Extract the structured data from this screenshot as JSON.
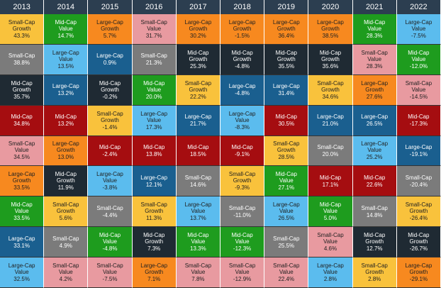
{
  "header": {
    "years": [
      "2013",
      "2014",
      "2015",
      "2016",
      "2017",
      "2018",
      "2019",
      "2020",
      "2021",
      "2022"
    ]
  },
  "columns": [
    {
      "cells": [
        {
          "asset": "Small-Cap Growth",
          "return": "43.3%",
          "color": "#f9c23c"
        },
        {
          "asset": "Small-Cap",
          "return": "38.8%",
          "color": "#7b7b7b"
        },
        {
          "asset": "Mid-Cap Growth",
          "return": "35.7%",
          "color": "#1f2a33"
        },
        {
          "asset": "Mid-Cap",
          "return": "34.8%",
          "color": "#a50d10"
        },
        {
          "asset": "Small-Cap Value",
          "return": "34.5%",
          "color": "#e89aa0"
        },
        {
          "asset": "Large-Cap Growth",
          "return": "33.5%",
          "color": "#f7891f"
        },
        {
          "asset": "Mid-Cap Value",
          "return": "33.5%",
          "color": "#1e9c1e"
        },
        {
          "asset": "Large-Cap",
          "return": "33.1%",
          "color": "#1a5f8f"
        },
        {
          "asset": "Large-Cap Value",
          "return": "32.5%",
          "color": "#5bbcee"
        }
      ]
    },
    {
      "cells": [
        {
          "asset": "Mid-Cap Value",
          "return": "14.7%",
          "color": "#1e9c1e"
        },
        {
          "asset": "Large-Cap Value",
          "return": "13.5%",
          "color": "#5bbcee"
        },
        {
          "asset": "Large-Cap",
          "return": "13.2%",
          "color": "#1a5f8f"
        },
        {
          "asset": "Mid-Cap",
          "return": "13.2%",
          "color": "#a50d10"
        },
        {
          "asset": "Large-Cap Growth",
          "return": "13.0%",
          "color": "#f7891f"
        },
        {
          "asset": "Mid-Cap Growth",
          "return": "11.9%",
          "color": "#1f2a33"
        },
        {
          "asset": "Small-Cap Growth",
          "return": "5.6%",
          "color": "#f9c23c"
        },
        {
          "asset": "Small-Cap",
          "return": "4.9%",
          "color": "#7b7b7b"
        },
        {
          "asset": "Small-Cap Value",
          "return": "4.2%",
          "color": "#e89aa0"
        }
      ]
    },
    {
      "cells": [
        {
          "asset": "Large-Cap Growth",
          "return": "5.7%",
          "color": "#f7891f"
        },
        {
          "asset": "Large-Cap",
          "return": "0.9%",
          "color": "#1a5f8f"
        },
        {
          "asset": "Mid-Cap Growth",
          "return": "-0.2%",
          "color": "#1f2a33"
        },
        {
          "asset": "Small-Cap Growth",
          "return": "-1.4%",
          "color": "#f9c23c"
        },
        {
          "asset": "Mid-Cap",
          "return": "-2.4%",
          "color": "#a50d10"
        },
        {
          "asset": "Large-Cap Value",
          "return": "-3.8%",
          "color": "#5bbcee"
        },
        {
          "asset": "Small-Cap",
          "return": "-4.4%",
          "color": "#7b7b7b"
        },
        {
          "asset": "Mid-Cap Value",
          "return": "-4.8%",
          "color": "#1e9c1e"
        },
        {
          "asset": "Small-Cap Value",
          "return": "-7.5%",
          "color": "#e89aa0"
        }
      ]
    },
    {
      "cells": [
        {
          "asset": "Small-Cap Value",
          "return": "31.7%",
          "color": "#e89aa0"
        },
        {
          "asset": "Small-Cap",
          "return": "21.3%",
          "color": "#7b7b7b"
        },
        {
          "asset": "Mid-Cap Value",
          "return": "20.0%",
          "color": "#1e9c1e"
        },
        {
          "asset": "Large-Cap Value",
          "return": "17.3%",
          "color": "#5bbcee"
        },
        {
          "asset": "Mid-Cap",
          "return": "13.8%",
          "color": "#a50d10"
        },
        {
          "asset": "Large-Cap",
          "return": "12.1%",
          "color": "#1a5f8f"
        },
        {
          "asset": "Small-Cap Growth",
          "return": "11.3%",
          "color": "#f9c23c"
        },
        {
          "asset": "Mid-Cap Growth",
          "return": "7.3%",
          "color": "#1f2a33"
        },
        {
          "asset": "Large-Cap Growth",
          "return": "7.1%",
          "color": "#f7891f"
        }
      ]
    },
    {
      "cells": [
        {
          "asset": "Large-Cap Growth",
          "return": "30.2%",
          "color": "#f7891f"
        },
        {
          "asset": "Mid-Cap Growth",
          "return": "25.3%",
          "color": "#1f2a33"
        },
        {
          "asset": "Small-Cap Growth",
          "return": "22.2%",
          "color": "#f9c23c"
        },
        {
          "asset": "Large-Cap",
          "return": "21.7%",
          "color": "#1a5f8f"
        },
        {
          "asset": "Mid-Cap",
          "return": "18.5%",
          "color": "#a50d10"
        },
        {
          "asset": "Small-Cap",
          "return": "14.6%",
          "color": "#7b7b7b"
        },
        {
          "asset": "Large-Cap Value",
          "return": "13.7%",
          "color": "#5bbcee"
        },
        {
          "asset": "Mid-Cap Value",
          "return": "13.3%",
          "color": "#1e9c1e"
        },
        {
          "asset": "Small-Cap Value",
          "return": "7.8%",
          "color": "#e89aa0"
        }
      ]
    },
    {
      "cells": [
        {
          "asset": "Large-Cap Growth",
          "return": "-1.5%",
          "color": "#f7891f"
        },
        {
          "asset": "Mid-Cap Growth",
          "return": "-4.8%",
          "color": "#1f2a33"
        },
        {
          "asset": "Large-Cap",
          "return": "-4.8%",
          "color": "#1a5f8f"
        },
        {
          "asset": "Large-Cap Value",
          "return": "-8.3%",
          "color": "#5bbcee"
        },
        {
          "asset": "Mid-Cap",
          "return": "-9.1%",
          "color": "#a50d10"
        },
        {
          "asset": "Small-Cap Growth",
          "return": "-9.3%",
          "color": "#f9c23c"
        },
        {
          "asset": "Small-Cap",
          "return": "-11.0%",
          "color": "#7b7b7b"
        },
        {
          "asset": "Mid-Cap Value",
          "return": "-12.3%",
          "color": "#1e9c1e"
        },
        {
          "asset": "Small-Cap Value",
          "return": "-12.9%",
          "color": "#e89aa0"
        }
      ]
    },
    {
      "cells": [
        {
          "asset": "Large-Cap Growth",
          "return": "36.4%",
          "color": "#f7891f"
        },
        {
          "asset": "Mid-Cap Growth",
          "return": "35.5%",
          "color": "#1f2a33"
        },
        {
          "asset": "Large-Cap",
          "return": "31.4%",
          "color": "#1a5f8f"
        },
        {
          "asset": "Mid-Cap",
          "return": "30.5%",
          "color": "#a50d10"
        },
        {
          "asset": "Small-Cap Growth",
          "return": "28.5%",
          "color": "#f9c23c"
        },
        {
          "asset": "Mid-Cap Value",
          "return": "27.1%",
          "color": "#1e9c1e"
        },
        {
          "asset": "Large-Cap Value",
          "return": "26.5%",
          "color": "#5bbcee"
        },
        {
          "asset": "Small-Cap",
          "return": "25.5%",
          "color": "#7b7b7b"
        },
        {
          "asset": "Small-Cap Value",
          "return": "22.4%",
          "color": "#e89aa0"
        }
      ]
    },
    {
      "cells": [
        {
          "asset": "Large-Cap Growth",
          "return": "38.5%",
          "color": "#f7891f"
        },
        {
          "asset": "Mid-Cap Growth",
          "return": "35.6%",
          "color": "#1f2a33"
        },
        {
          "asset": "Small-Cap Growth",
          "return": "34.6%",
          "color": "#f9c23c"
        },
        {
          "asset": "Large-Cap",
          "return": "21.0%",
          "color": "#1a5f8f"
        },
        {
          "asset": "Small-Cap",
          "return": "20.0%",
          "color": "#7b7b7b"
        },
        {
          "asset": "Mid-Cap",
          "return": "17.1%",
          "color": "#a50d10"
        },
        {
          "asset": "Mid-Cap Value",
          "return": "5.0%",
          "color": "#1e9c1e"
        },
        {
          "asset": "Small-Cap Value",
          "return": "4.6%",
          "color": "#e89aa0"
        },
        {
          "asset": "Large-Cap Value",
          "return": "2.8%",
          "color": "#5bbcee"
        }
      ]
    },
    {
      "cells": [
        {
          "asset": "Mid-Cap Value",
          "return": "28.3%",
          "color": "#1e9c1e"
        },
        {
          "asset": "Small-Cap Value",
          "return": "28.3%",
          "color": "#e89aa0"
        },
        {
          "asset": "Large-Cap Growth",
          "return": "27.6%",
          "color": "#f7891f"
        },
        {
          "asset": "Large-Cap",
          "return": "26.5%",
          "color": "#1a5f8f"
        },
        {
          "asset": "Large-Cap Value",
          "return": "25.2%",
          "color": "#5bbcee"
        },
        {
          "asset": "Mid-Cap",
          "return": "22.6%",
          "color": "#a50d10"
        },
        {
          "asset": "Small-Cap",
          "return": "14.8%",
          "color": "#7b7b7b"
        },
        {
          "asset": "Mid-Cap Growth",
          "return": "12.7%",
          "color": "#1f2a33"
        },
        {
          "asset": "Small-Cap Growth",
          "return": "2.8%",
          "color": "#f9c23c"
        }
      ]
    },
    {
      "cells": [
        {
          "asset": "Large-Cap Value",
          "return": "-7.5%",
          "color": "#5bbcee"
        },
        {
          "asset": "Mid-Cap Value",
          "return": "-12.0%",
          "color": "#1e9c1e"
        },
        {
          "asset": "Small-Cap Value",
          "return": "-14.5%",
          "color": "#e89aa0"
        },
        {
          "asset": "Mid-Cap",
          "return": "-17.3%",
          "color": "#a50d10"
        },
        {
          "asset": "Large-Cap",
          "return": "-19.1%",
          "color": "#1a5f8f"
        },
        {
          "asset": "Small-Cap",
          "return": "-20.4%",
          "color": "#7b7b7b"
        },
        {
          "asset": "Small-Cap Growth",
          "return": "-26.4%",
          "color": "#f9c23c"
        },
        {
          "asset": "Mid-Cap Growth",
          "return": "-26.7%",
          "color": "#1f2a33"
        },
        {
          "asset": "Large-Cap Growth",
          "return": "-29.1%",
          "color": "#f7891f"
        }
      ]
    }
  ]
}
